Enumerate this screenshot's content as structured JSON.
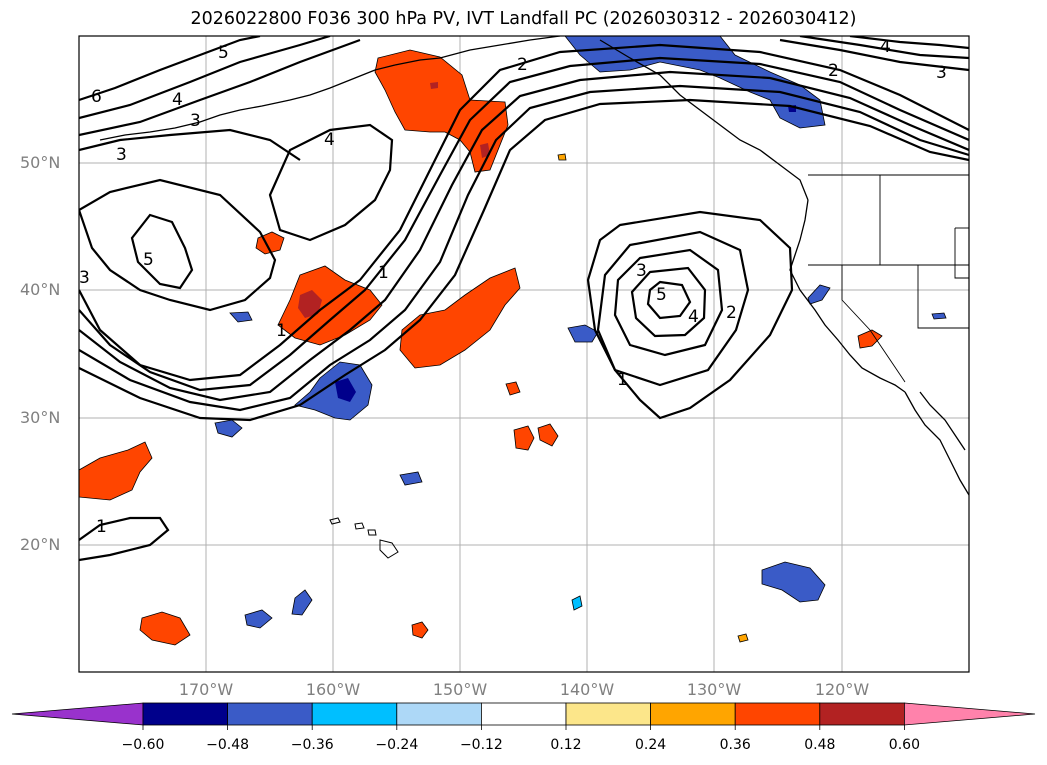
{
  "title": "2026022800 F036 300 hPa PV, IVT Landfall PC (2026030312 - 2026030412)",
  "lat_labels": [
    "50°N",
    "40°N",
    "30°N",
    "20°N"
  ],
  "lon_labels": [
    "170°W",
    "160°W",
    "150°W",
    "140°W",
    "130°W",
    "120°W"
  ],
  "contour_labels": [
    "6",
    "5",
    "4",
    "3",
    "3",
    "5",
    "4",
    "3",
    "1",
    "1",
    "2",
    "4",
    "2",
    "3",
    "3",
    "5",
    "4",
    "2",
    "1",
    "1"
  ],
  "colorbar": {
    "ticks": [
      "−0.60",
      "−0.48",
      "−0.36",
      "−0.24",
      "−0.12",
      "0.12",
      "0.24",
      "0.36",
      "0.48",
      "0.60"
    ],
    "colors": [
      "#9932CC",
      "#00008B",
      "#3A5BC7",
      "#00BFFF",
      "#ADD8F7",
      "#FFFFFF",
      "#FCE68A",
      "#FFA500",
      "#FF4500",
      "#B22222",
      "#FF82AB"
    ]
  }
}
